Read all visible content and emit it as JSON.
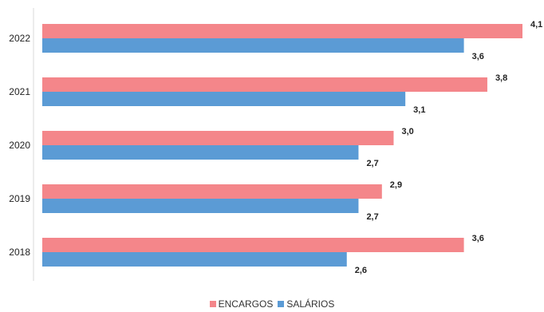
{
  "chart_data": {
    "type": "bar",
    "orientation": "horizontal",
    "categories": [
      "2022",
      "2021",
      "2020",
      "2019",
      "2018"
    ],
    "series": [
      {
        "name": "ENCARGOS",
        "color": "#F4868A",
        "values": [
          4.1,
          3.8,
          3.0,
          2.9,
          3.6
        ],
        "labels": [
          "4,1",
          "3,8",
          "3,0",
          "2,9",
          "3,6"
        ]
      },
      {
        "name": "SALÁRIOS",
        "color": "#5B9BD5",
        "values": [
          3.6,
          3.1,
          2.7,
          2.7,
          2.6
        ],
        "labels": [
          "3,6",
          "3,1",
          "2,7",
          "2,7",
          "2,6"
        ]
      }
    ],
    "xlim": [
      0,
      4.1
    ],
    "grid": false,
    "legend_position": "bottom"
  }
}
